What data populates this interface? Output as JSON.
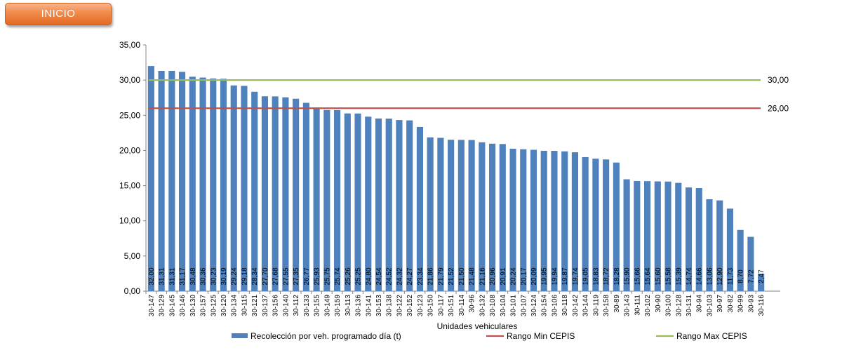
{
  "inicio_button": "INICIO",
  "chart_data": {
    "type": "bar",
    "xlabel": "Unidades vehiculares",
    "ylabel": "",
    "ylim": [
      0,
      35
    ],
    "yticks": [
      "0,00",
      "5,00",
      "10,00",
      "15,00",
      "20,00",
      "25,00",
      "30,00",
      "35,00"
    ],
    "categories": [
      "30-147",
      "30-129",
      "30-145",
      "30-146",
      "30-130",
      "30-157",
      "30-125",
      "30-120",
      "30-134",
      "30-115",
      "30-121",
      "30-137",
      "30-156",
      "30-140",
      "30-112",
      "30-133",
      "30-155",
      "30-149",
      "30-159",
      "30-113",
      "30-136",
      "30-141",
      "30-153",
      "30-138",
      "30-122",
      "30-152",
      "30-123",
      "30-150",
      "30-117",
      "30-151",
      "30-114",
      "30-96",
      "30-132",
      "30-108",
      "30-104",
      "30-101",
      "30-107",
      "30-124",
      "30-154",
      "30-106",
      "30-118",
      "30-142",
      "30-144",
      "30-119",
      "30-158",
      "30-89",
      "30-143",
      "30-111",
      "30-102",
      "30-90",
      "30-100",
      "30-128",
      "30-131",
      "30-94",
      "30-103",
      "30-97",
      "30-82",
      "30-99",
      "30-93",
      "30-116"
    ],
    "series": [
      {
        "name": "Recolección por veh. programado día (t)",
        "color": "#4f81bd",
        "values": [
          32.0,
          31.31,
          31.31,
          31.17,
          30.48,
          30.36,
          30.23,
          30.19,
          29.24,
          29.18,
          28.34,
          27.7,
          27.68,
          27.55,
          27.35,
          26.77,
          25.93,
          25.75,
          25.74,
          25.26,
          25.25,
          24.8,
          24.54,
          24.52,
          24.32,
          24.27,
          23.34,
          21.86,
          21.79,
          21.52,
          21.5,
          21.48,
          21.16,
          20.96,
          20.91,
          20.24,
          20.17,
          20.09,
          19.95,
          19.94,
          19.87,
          19.74,
          19.05,
          18.83,
          18.72,
          18.28,
          15.9,
          15.66,
          15.64,
          15.6,
          15.58,
          15.39,
          14.74,
          14.66,
          13.06,
          12.9,
          11.73,
          8.7,
          7.72,
          2.47
        ],
        "labels": [
          "32,00",
          "31,31",
          "31,31",
          "31,17",
          "30,48",
          "30,36",
          "30,23",
          "30,19",
          "29,24",
          "29,18",
          "28,34",
          "27,70",
          "27,68",
          "27,55",
          "27,35",
          "26,77",
          "25,93",
          "25,75",
          "25,74",
          "25,26",
          "25,25",
          "24,80",
          "24,54",
          "24,52",
          "24,32",
          "24,27",
          "23,34",
          "21,86",
          "21,79",
          "21,52",
          "21,50",
          "21,48",
          "21,16",
          "20,96",
          "20,91",
          "20,24",
          "20,17",
          "20,09",
          "19,95",
          "19,94",
          "19,87",
          "19,74",
          "19,05",
          "18,83",
          "18,72",
          "18,28",
          "15,90",
          "15,66",
          "15,64",
          "15,60",
          "15,58",
          "15,39",
          "14,74",
          "14,66",
          "13,06",
          "12,90",
          "11,73",
          "8,70",
          "7,72",
          "2,47"
        ]
      }
    ],
    "reference_lines": [
      {
        "name": "Rango Min CEPIS",
        "value": 26.0,
        "label": "26,00",
        "color": "#c0504d"
      },
      {
        "name": "Rango Max CEPIS",
        "value": 30.0,
        "label": "30,00",
        "color": "#9bbb59"
      }
    ],
    "grid": false,
    "legend_position": "bottom"
  }
}
